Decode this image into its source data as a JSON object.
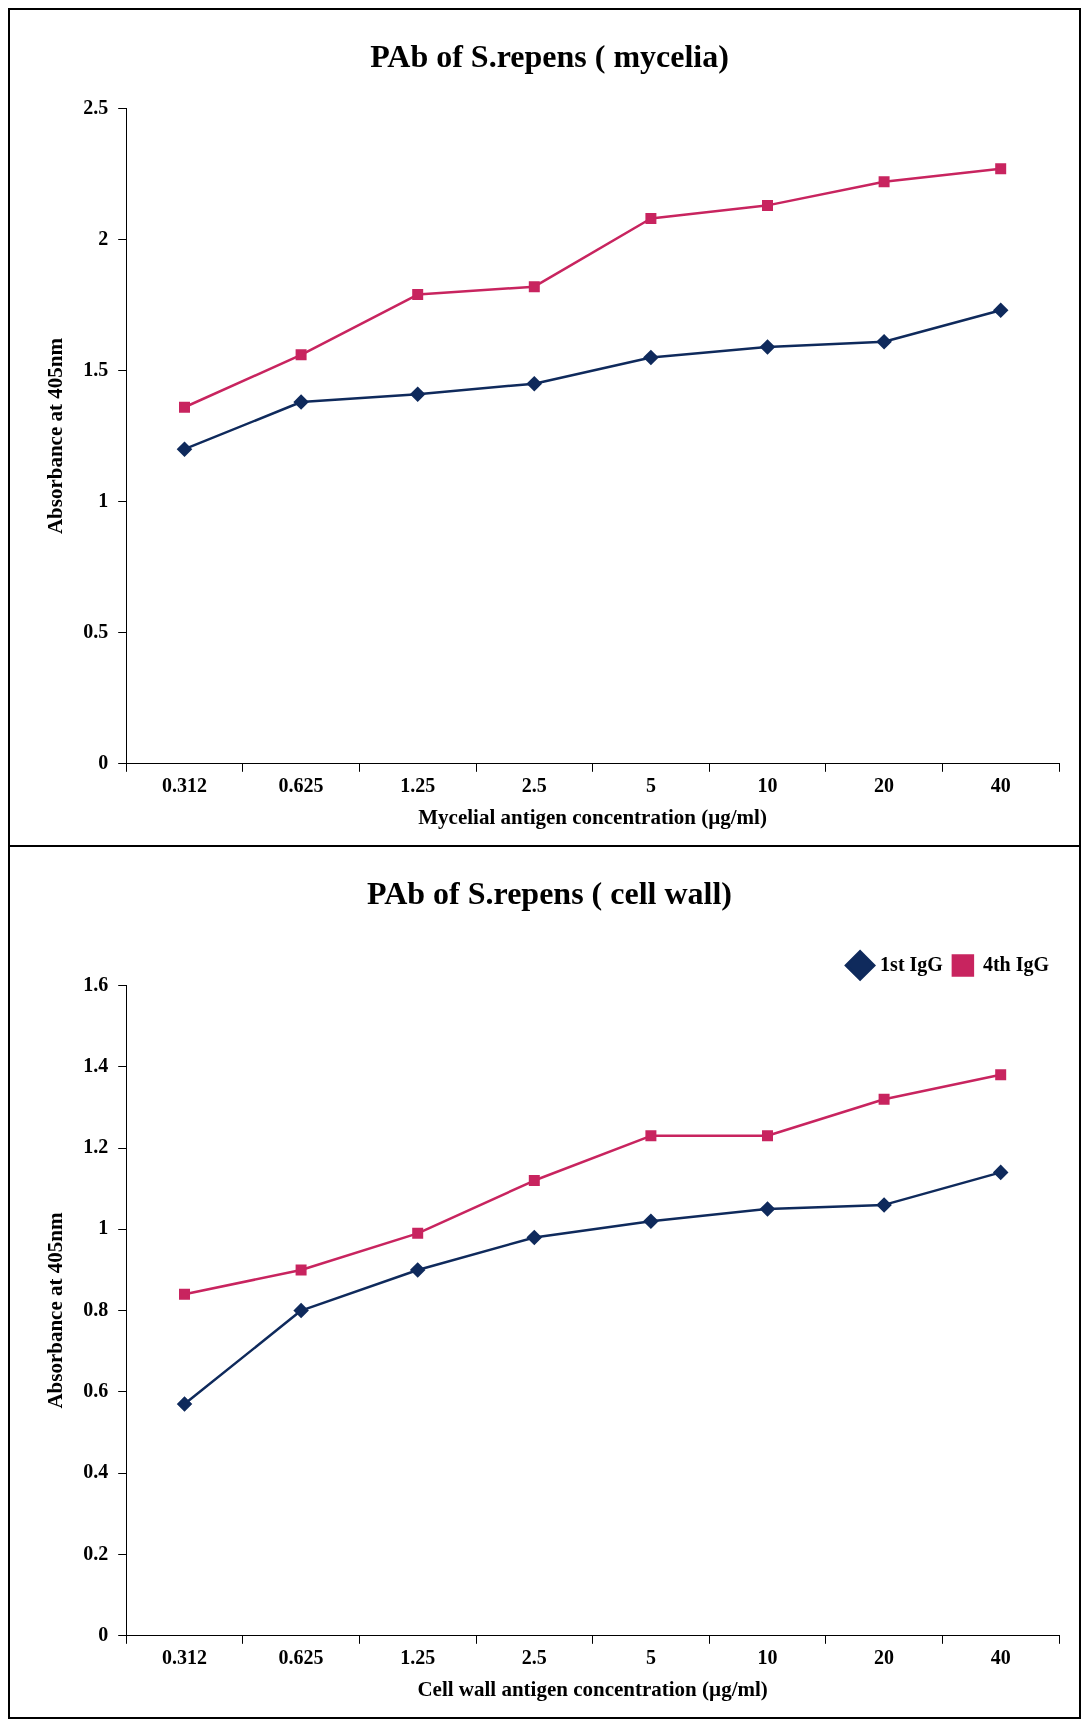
{
  "chart_data": [
    {
      "type": "line",
      "title": "PAb of S.repens ( mycelia)",
      "xlabel": "Mycelial antigen concentration (µg/ml)",
      "ylabel": "Absorbance at 405nm",
      "categories": [
        "0.312",
        "0.625",
        "1.25",
        "2.5",
        "5",
        "10",
        "20",
        "40"
      ],
      "series": [
        {
          "color": "#0f2a5c",
          "marker": "diamond",
          "values": [
            1.2,
            1.38,
            1.41,
            1.45,
            1.55,
            1.59,
            1.61,
            1.73
          ]
        },
        {
          "color": "#c8245f",
          "marker": "square",
          "values": [
            1.36,
            1.56,
            1.79,
            1.82,
            2.08,
            2.13,
            2.22,
            2.27
          ]
        }
      ],
      "ylim": [
        0,
        2.5
      ],
      "yticks": [
        0,
        0.5,
        1,
        1.5,
        2,
        2.5
      ],
      "grid": false
    },
    {
      "type": "line",
      "title": "PAb of S.repens ( cell wall)",
      "xlabel": "Cell wall antigen concentration (µg/ml)",
      "ylabel": "Absorbance at 405nm",
      "categories": [
        "0.312",
        "0.625",
        "1.25",
        "2.5",
        "5",
        "10",
        "20",
        "40"
      ],
      "series": [
        {
          "name": "1st IgG",
          "color": "#0f2a5c",
          "marker": "diamond",
          "values": [
            0.57,
            0.8,
            0.9,
            0.98,
            1.02,
            1.05,
            1.06,
            1.14
          ]
        },
        {
          "name": "4th IgG",
          "color": "#c8245f",
          "marker": "square",
          "values": [
            0.84,
            0.9,
            0.99,
            1.12,
            1.23,
            1.23,
            1.32,
            1.38
          ]
        }
      ],
      "ylim": [
        0,
        1.6
      ],
      "yticks": [
        0,
        0.2,
        0.4,
        0.6,
        0.8,
        1,
        1.2,
        1.4,
        1.6
      ],
      "grid": false,
      "legend": "top right"
    }
  ]
}
